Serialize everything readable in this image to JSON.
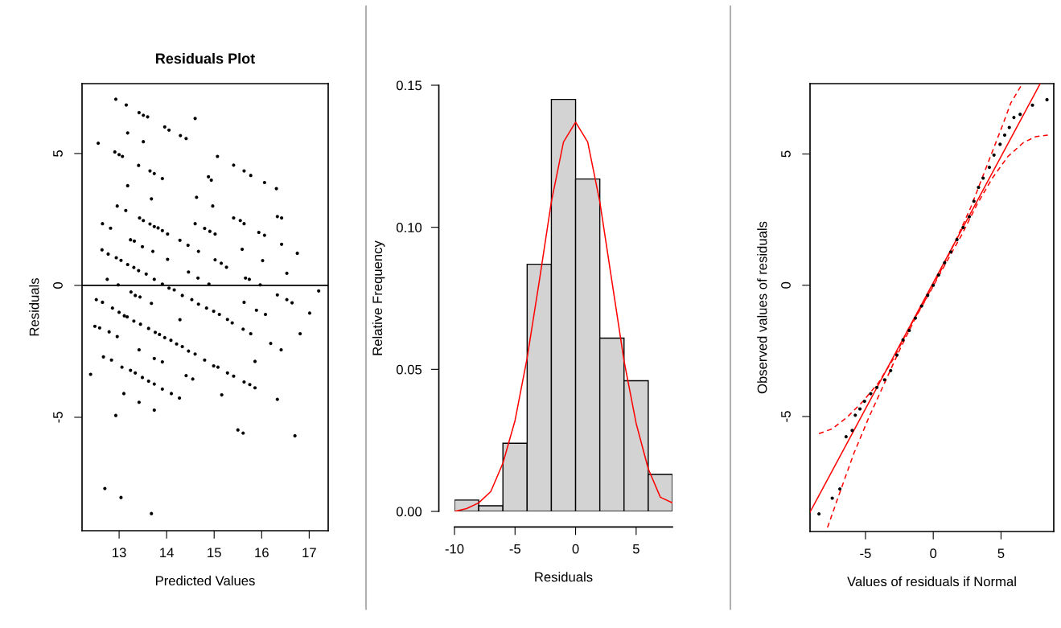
{
  "chart_data": [
    {
      "type": "scatter",
      "title": "Residuals Plot",
      "xlabel": "Predicted Values",
      "ylabel": "Residuals",
      "marker": "circle",
      "xlim": [
        12.22,
        17.4
      ],
      "ylim": [
        -9.3,
        7.65
      ],
      "xticks": [
        13,
        14,
        15,
        16,
        17
      ],
      "yticks": [
        -5,
        0,
        5
      ],
      "ref_lines": [
        {
          "axis": "y",
          "value": 0,
          "color": "#000000"
        }
      ],
      "series": [
        {
          "color": "#000000",
          "x": [
            12.93,
            13.15,
            13.42,
            13.51,
            13.6,
            14.6,
            13.96,
            14.05,
            14.29,
            14.41,
            12.56,
            13.18,
            13.51,
            12.91,
            13.0,
            13.07,
            15.07,
            15.41,
            15.63,
            15.77,
            16.06,
            16.31,
            13.41,
            13.65,
            13.74,
            13.91,
            14.88,
            14.94,
            13.18,
            13.68,
            14.63,
            14.97,
            12.96,
            13.14,
            13.43,
            13.51,
            13.65,
            13.74,
            13.82,
            13.91,
            14.02,
            14.6,
            14.8,
            14.91,
            15.02,
            15.41,
            15.55,
            15.63,
            16.33,
            16.42,
            15.94,
            16.06,
            12.65,
            12.82,
            13.24,
            13.32,
            13.49,
            13.71,
            14.02,
            14.28,
            14.45,
            14.67,
            15.59,
            16.02,
            16.42,
            16.75,
            12.64,
            12.77,
            12.94,
            13.04,
            13.18,
            13.31,
            13.41,
            13.57,
            13.74,
            13.91,
            15.02,
            15.15,
            15.26,
            14.46,
            14.66,
            14.89,
            15.66,
            15.74,
            16.53,
            12.75,
            12.98,
            15.97,
            17.2,
            14.05,
            14.16,
            13.25,
            13.34,
            13.44,
            14.33,
            14.53,
            14.67,
            12.52,
            12.65,
            13.68,
            15.63,
            16.33,
            16.53,
            16.64,
            14.84,
            14.99,
            15.11,
            15.28,
            15.38,
            15.89,
            16.08,
            17.01,
            12.86,
            13.0,
            13.11,
            13.17,
            13.31,
            13.45,
            13.62,
            13.76,
            13.85,
            13.96,
            14.09,
            14.21,
            14.33,
            14.28,
            14.46,
            14.6,
            14.8,
            14.99,
            15.08,
            15.28,
            15.41,
            15.63,
            15.75,
            15.86,
            15.61,
            15.77,
            16.19,
            16.41,
            16.81,
            15.86,
            12.49,
            12.59,
            12.79,
            12.96,
            13.42,
            13.74,
            13.91,
            12.67,
            12.84,
            13.06,
            13.24,
            13.34,
            13.49,
            13.62,
            13.74,
            13.91,
            14.1,
            14.27,
            14.41,
            14.55,
            15.16,
            16.33,
            13.1,
            13.42,
            13.74,
            12.93,
            12.4,
            15.5,
            15.61,
            16.7,
            12.7,
            13.04,
            13.68
          ],
          "values": [
            7.06,
            6.84,
            6.55,
            6.45,
            6.39,
            6.33,
            6.01,
            5.89,
            5.68,
            5.57,
            5.39,
            5.78,
            5.45,
            5.06,
            4.96,
            4.89,
            4.89,
            4.56,
            4.34,
            4.17,
            3.9,
            3.67,
            4.55,
            4.34,
            4.24,
            4.05,
            4.12,
            3.99,
            3.78,
            3.28,
            3.34,
            3.01,
            3.01,
            2.84,
            2.56,
            2.46,
            2.33,
            2.23,
            2.18,
            2.08,
            1.95,
            2.34,
            2.16,
            2.05,
            1.95,
            2.56,
            2.46,
            2.34,
            2.61,
            2.56,
            2.01,
            1.9,
            2.34,
            2.17,
            1.73,
            1.68,
            1.47,
            1.29,
            0.99,
            1.71,
            1.52,
            1.29,
            1.37,
            0.94,
            1.56,
            1.22,
            1.35,
            1.19,
            1.05,
            0.95,
            0.79,
            0.68,
            0.56,
            0.43,
            0.23,
            0.05,
            0.97,
            0.84,
            0.69,
            0.51,
            0.28,
            0.05,
            0.28,
            0.23,
            0.46,
            0.23,
            0.02,
            0.02,
            -0.21,
            -0.1,
            -0.17,
            -0.25,
            -0.38,
            -0.44,
            -0.38,
            -0.54,
            -0.71,
            -0.54,
            -0.64,
            -0.68,
            -0.64,
            -0.36,
            -0.54,
            -0.66,
            -0.86,
            -0.98,
            -1.1,
            -1.29,
            -1.42,
            -0.94,
            -1.1,
            -1.05,
            -0.86,
            -1.02,
            -1.15,
            -1.19,
            -1.35,
            -1.47,
            -1.63,
            -1.78,
            -1.86,
            -1.98,
            -2.08,
            -2.22,
            -2.32,
            -1.3,
            -2.49,
            -2.6,
            -2.83,
            -3.05,
            -3.1,
            -3.32,
            -3.44,
            -3.66,
            -3.76,
            -3.88,
            -1.66,
            -1.83,
            -2.2,
            -2.44,
            -1.83,
            -2.88,
            -1.55,
            -1.61,
            -1.76,
            -1.94,
            -2.44,
            -2.77,
            -2.9,
            -2.71,
            -2.83,
            -3.1,
            -3.22,
            -3.32,
            -3.49,
            -3.63,
            -3.74,
            -3.93,
            -4.1,
            -4.27,
            -3.42,
            -3.55,
            -4.15,
            -4.32,
            -4.1,
            -4.43,
            -4.73,
            -4.93,
            -3.37,
            -5.48,
            -5.6,
            -5.7,
            -7.7,
            -8.04,
            -8.65
          ]
        }
      ]
    },
    {
      "type": "histogram",
      "xlabel": "Residuals",
      "ylabel": "Relative Frequency",
      "color": "#d3d3d3",
      "xlim": [
        -10,
        8
      ],
      "ylim": [
        0,
        0.15
      ],
      "xticks": [
        -10,
        -5,
        0,
        5
      ],
      "yticks": [
        {
          "value": 0,
          "label": "0.00"
        },
        {
          "value": 0.05,
          "label": "0.05"
        },
        {
          "value": 0.1,
          "label": "0.10"
        },
        {
          "value": 0.15,
          "label": "0.15"
        }
      ],
      "bins": [
        -10,
        -8,
        -6,
        -4,
        -2,
        0,
        2,
        4,
        6,
        8
      ],
      "values": [
        0.004,
        0.002,
        0.024,
        0.087,
        0.145,
        0.117,
        0.061,
        0.046,
        0.013
      ],
      "series": [
        {
          "type": "line",
          "color": "#ff0000",
          "line_style": "solid",
          "x": [
            -10,
            -9,
            -8,
            -7,
            -6,
            -5,
            -4,
            -3,
            -2,
            -1,
            0,
            1,
            2,
            3,
            4,
            5,
            6,
            7,
            8
          ],
          "values": [
            0.0,
            0.001,
            0.003,
            0.007,
            0.017,
            0.032,
            0.054,
            0.081,
            0.109,
            0.13,
            0.137,
            0.13,
            0.109,
            0.081,
            0.053,
            0.031,
            0.015,
            0.005,
            0.003
          ]
        }
      ]
    },
    {
      "type": "scatter",
      "xlabel": "Values of residuals if Normal",
      "ylabel": "Observed values of residuals",
      "xlim": [
        -9.09,
        8.89
      ],
      "ylim": [
        -9.38,
        7.68
      ],
      "xticks": [
        -5,
        0,
        5
      ],
      "yticks": [
        -5,
        0,
        5
      ],
      "series": [
        {
          "color": "#000000",
          "marker": "circle",
          "x": [
            -8.43,
            -7.45,
            -6.89,
            -6.43,
            -5.98,
            -5.75,
            -5.41,
            -5.07,
            -4.61,
            -4.16,
            -3.59,
            -3.14,
            -2.68,
            -2.23,
            -1.77,
            -1.32,
            -0.86,
            -0.41,
            0,
            0.39,
            0.84,
            1.3,
            1.75,
            2.2,
            2.66,
            3.0,
            3.34,
            3.68,
            4.14,
            4.48,
            4.93,
            5.27,
            5.61,
            5.95,
            6.41,
            7.32,
            8.39
          ],
          "values": [
            -8.71,
            -8.11,
            -7.76,
            -5.77,
            -5.53,
            -4.95,
            -4.71,
            -4.42,
            -4.13,
            -3.89,
            -3.6,
            -3.25,
            -2.66,
            -2.08,
            -1.72,
            -1.25,
            -0.79,
            -0.38,
            0,
            0.39,
            0.86,
            1.27,
            1.74,
            2.2,
            2.61,
            3.2,
            3.73,
            4.08,
            4.49,
            4.96,
            5.37,
            5.72,
            6.01,
            6.39,
            6.51,
            6.86,
            7.07
          ]
        },
        {
          "type": "line",
          "color": "#ff0000",
          "line_style": "solid",
          "x": [
            -9.09,
            7.89
          ],
          "values": [
            -8.64,
            7.68
          ]
        },
        {
          "type": "line",
          "color": "#ff0000",
          "line_style": "dashed",
          "x": [
            -8.43,
            -7.45,
            -6.32,
            -5.18,
            -4.05,
            -2.91,
            -1.77,
            -0.64,
            0.5,
            1.64,
            2.77,
            3.91,
            5.05,
            5.73,
            6.52
          ],
          "values": [
            -5.65,
            -5.47,
            -5.01,
            -4.42,
            -3.72,
            -2.78,
            -1.61,
            -0.61,
            0.5,
            1.68,
            2.97,
            4.49,
            6.01,
            6.95,
            7.63
          ]
        },
        {
          "type": "line",
          "color": "#ff0000",
          "line_style": "dashed",
          "x": [
            -7.8,
            -7.0,
            -5.86,
            -4.73,
            -3.59,
            -2.45,
            -1.32,
            -0.18,
            0.95,
            2.09,
            3.23,
            4.36,
            5.5,
            6.64,
            7.55,
            8.45
          ],
          "values": [
            -9.23,
            -8.05,
            -6.41,
            -5.01,
            -3.72,
            -2.43,
            -1.25,
            -0.2,
            0.86,
            1.91,
            3.08,
            4.08,
            4.9,
            5.43,
            5.66,
            5.72
          ]
        }
      ]
    }
  ]
}
